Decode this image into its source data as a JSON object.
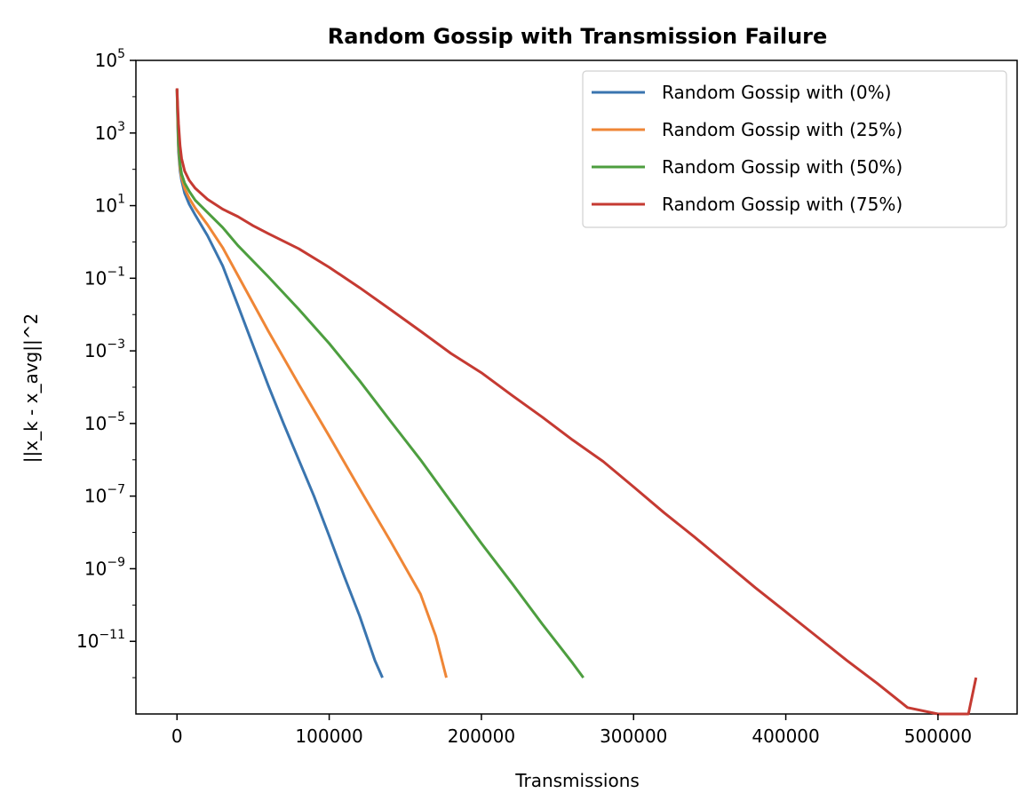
{
  "chart_data": {
    "type": "line",
    "title": "Random Gossip with Transmission Failure",
    "xlabel": "Transmissions",
    "ylabel": "||x_k - x_avg||^2",
    "xlim": [
      -27000,
      552000
    ],
    "ylim": [
      1e-13,
      100000
    ],
    "yscale": "log",
    "xticks": [
      0,
      100000,
      200000,
      300000,
      400000,
      500000
    ],
    "xtick_labels": [
      "0",
      "100000",
      "200000",
      "300000",
      "400000",
      "500000"
    ],
    "yticks": [
      {
        "base": "10",
        "exp": "5",
        "value": 100000
      },
      {
        "base": "10",
        "exp": "3",
        "value": 1000
      },
      {
        "base": "10",
        "exp": "1",
        "value": 10
      },
      {
        "base": "10",
        "exp": "−1",
        "value": 0.1
      },
      {
        "base": "10",
        "exp": "−3",
        "value": 0.001
      },
      {
        "base": "10",
        "exp": "−5",
        "value": 1e-05
      },
      {
        "base": "10",
        "exp": "−7",
        "value": 1e-07
      },
      {
        "base": "10",
        "exp": "−9",
        "value": 1e-09
      },
      {
        "base": "10",
        "exp": "−11",
        "value": 1e-11
      }
    ],
    "grid": false,
    "legend_position": "top-right",
    "series": [
      {
        "name": "Random Gossip with (0%)",
        "color": "#3a75af",
        "x": [
          0,
          500,
          1000,
          2000,
          3000,
          5000,
          8000,
          12000,
          20000,
          30000,
          40000,
          50000,
          60000,
          70000,
          80000,
          90000,
          100000,
          110000,
          120000,
          130000,
          135000
        ],
        "y": [
          16000,
          1500,
          300,
          90,
          50,
          22,
          11,
          5.5,
          1.5,
          0.22,
          0.018,
          0.0014,
          0.00011,
          1e-05,
          1e-06,
          1e-07,
          8e-09,
          6e-10,
          5e-11,
          3e-12,
          1e-12
        ]
      },
      {
        "name": "Random Gossip with (25%)",
        "color": "#ef8636",
        "x": [
          0,
          500,
          1000,
          2000,
          3000,
          5000,
          8000,
          12000,
          20000,
          30000,
          40000,
          60000,
          80000,
          100000,
          120000,
          140000,
          160000,
          170000,
          177000
        ],
        "y": [
          16000,
          2000,
          400,
          110,
          60,
          30,
          16,
          8.5,
          3.0,
          0.7,
          0.12,
          0.0035,
          0.00012,
          4.5e-06,
          1.6e-07,
          6e-09,
          2e-10,
          1.4e-11,
          1e-12
        ]
      },
      {
        "name": "Random Gossip with (50%)",
        "color": "#4d9e3f",
        "x": [
          0,
          500,
          1000,
          2000,
          3000,
          5000,
          8000,
          12000,
          20000,
          30000,
          40000,
          60000,
          80000,
          100000,
          120000,
          140000,
          160000,
          180000,
          200000,
          220000,
          240000,
          260000,
          267000
        ],
        "y": [
          16000,
          2500,
          500,
          140,
          75,
          42,
          25,
          14,
          6.5,
          2.5,
          0.8,
          0.11,
          0.014,
          0.0016,
          0.00015,
          1.2e-05,
          1e-06,
          7e-08,
          5e-09,
          4e-10,
          3e-11,
          2.5e-12,
          1e-12
        ]
      },
      {
        "name": "Random Gossip with (75%)",
        "color": "#c53a32",
        "x": [
          0,
          500,
          1000,
          2000,
          3000,
          5000,
          8000,
          12000,
          20000,
          30000,
          40000,
          50000,
          60000,
          80000,
          100000,
          120000,
          140000,
          160000,
          180000,
          200000,
          220000,
          240000,
          260000,
          280000,
          300000,
          320000,
          340000,
          360000,
          380000,
          400000,
          420000,
          440000,
          460000,
          480000,
          500000,
          520000,
          525000
        ],
        "y": [
          17000,
          5000,
          1800,
          450,
          200,
          90,
          50,
          30,
          15,
          8,
          5,
          2.8,
          1.7,
          0.65,
          0.2,
          0.055,
          0.014,
          0.0035,
          0.00085,
          0.00025,
          6e-05,
          1.5e-05,
          3.5e-06,
          9e-07,
          1.8e-07,
          3.5e-08,
          7.5e-09,
          1.5e-09,
          3e-10,
          6.5e-11,
          1.4e-11,
          3e-12,
          7e-13,
          1.5e-13,
          3e-14,
          5.5e-15,
          1e-12
        ]
      }
    ]
  }
}
